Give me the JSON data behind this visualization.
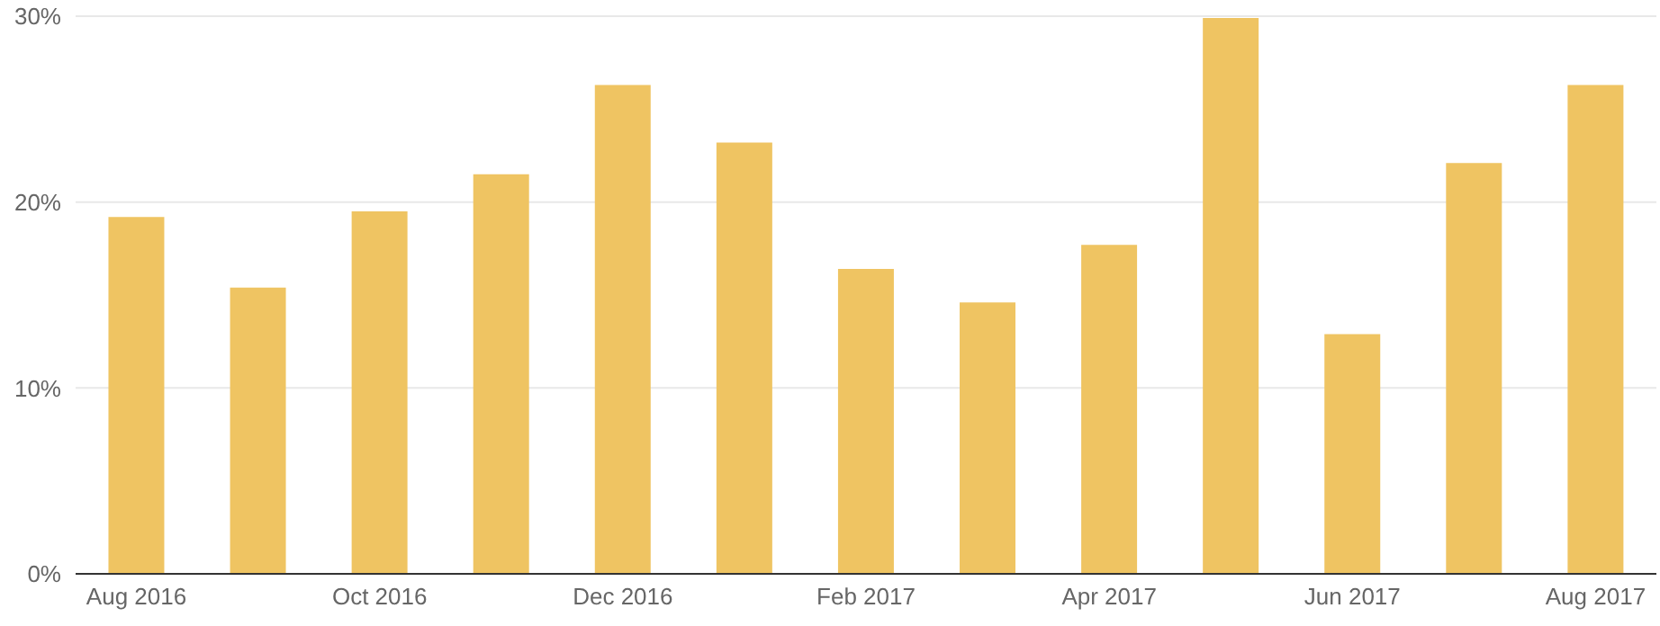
{
  "chart_data": {
    "type": "bar",
    "categories": [
      "Aug 2016",
      null,
      "Oct 2016",
      null,
      "Dec 2016",
      null,
      "Feb 2017",
      null,
      "Apr 2017",
      null,
      "Jun 2017",
      null,
      "Aug 2017"
    ],
    "values": [
      19.2,
      15.4,
      19.5,
      21.5,
      26.3,
      23.2,
      16.4,
      14.6,
      17.7,
      29.9,
      12.9,
      22.1,
      26.3
    ],
    "color": "#efc462",
    "ylim": [
      0,
      30
    ],
    "yticks": [
      {
        "value": 0,
        "label": "0%"
      },
      {
        "value": 10,
        "label": "10%"
      },
      {
        "value": 20,
        "label": "20%"
      },
      {
        "value": 30,
        "label": "30%"
      }
    ],
    "grid": "y"
  }
}
